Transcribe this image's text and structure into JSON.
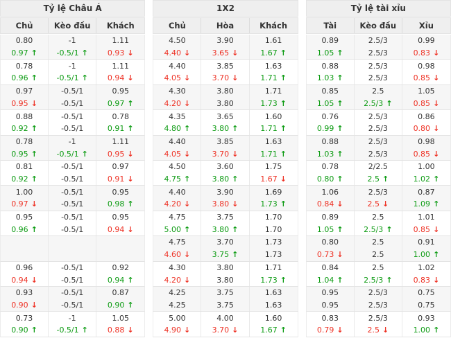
{
  "icons": {
    "up": "↑",
    "down": "↓"
  },
  "colors": {
    "up_green": "#0c9b12",
    "down_red": "#ee3124",
    "header_bg": "#efefef",
    "alt_row_bg": "#f6f6f6"
  },
  "sections": [
    {
      "title": "Tỷ lệ Châu Á",
      "columns": [
        "Chủ",
        "Kèo đầu",
        "Khách"
      ],
      "rows": [
        {
          "main": [
            [
              "0.80",
              ""
            ],
            [
              "-1",
              ""
            ],
            [
              "1.11",
              ""
            ]
          ],
          "change": [
            [
              "0.97",
              "up"
            ],
            [
              "-0.5/1",
              "up"
            ],
            [
              "0.93",
              "down"
            ]
          ]
        },
        {
          "main": [
            [
              "0.78",
              ""
            ],
            [
              "-1",
              ""
            ],
            [
              "1.11",
              ""
            ]
          ],
          "change": [
            [
              "0.96",
              "up"
            ],
            [
              "-0.5/1",
              "up"
            ],
            [
              "0.94",
              "down"
            ]
          ]
        },
        {
          "main": [
            [
              "0.97",
              ""
            ],
            [
              "-0.5/1",
              ""
            ],
            [
              "0.95",
              ""
            ]
          ],
          "change": [
            [
              "0.95",
              "down"
            ],
            [
              "-0.5/1",
              ""
            ],
            [
              "0.97",
              "up"
            ]
          ]
        },
        {
          "main": [
            [
              "0.88",
              ""
            ],
            [
              "-0.5/1",
              ""
            ],
            [
              "0.78",
              ""
            ]
          ],
          "change": [
            [
              "0.92",
              "up"
            ],
            [
              "-0.5/1",
              ""
            ],
            [
              "0.91",
              "up"
            ]
          ]
        },
        {
          "main": [
            [
              "0.78",
              ""
            ],
            [
              "-1",
              ""
            ],
            [
              "1.11",
              ""
            ]
          ],
          "change": [
            [
              "0.95",
              "up"
            ],
            [
              "-0.5/1",
              "up"
            ],
            [
              "0.95",
              "down"
            ]
          ]
        },
        {
          "main": [
            [
              "0.81",
              ""
            ],
            [
              "-0.5/1",
              ""
            ],
            [
              "0.97",
              ""
            ]
          ],
          "change": [
            [
              "0.92",
              "up"
            ],
            [
              "-0.5/1",
              ""
            ],
            [
              "0.91",
              "down"
            ]
          ]
        },
        {
          "main": [
            [
              "1.00",
              ""
            ],
            [
              "-0.5/1",
              ""
            ],
            [
              "0.95",
              ""
            ]
          ],
          "change": [
            [
              "0.97",
              "down"
            ],
            [
              "-0.5/1",
              ""
            ],
            [
              "0.98",
              "up"
            ]
          ]
        },
        {
          "main": [
            [
              "0.95",
              ""
            ],
            [
              "-0.5/1",
              ""
            ],
            [
              "0.95",
              ""
            ]
          ],
          "change": [
            [
              "0.96",
              "up"
            ],
            [
              "-0.5/1",
              ""
            ],
            [
              "0.94",
              "down"
            ]
          ]
        },
        {
          "main": [
            [
              "",
              ""
            ],
            [
              "",
              ""
            ],
            [
              "",
              ""
            ]
          ],
          "change": [
            [
              "",
              ""
            ],
            [
              "",
              ""
            ],
            [
              "",
              ""
            ]
          ]
        },
        {
          "main": [
            [
              "0.96",
              ""
            ],
            [
              "-0.5/1",
              ""
            ],
            [
              "0.92",
              ""
            ]
          ],
          "change": [
            [
              "0.94",
              "down"
            ],
            [
              "-0.5/1",
              ""
            ],
            [
              "0.94",
              "up"
            ]
          ]
        },
        {
          "main": [
            [
              "0.93",
              ""
            ],
            [
              "-0.5/1",
              ""
            ],
            [
              "0.87",
              ""
            ]
          ],
          "change": [
            [
              "0.90",
              "down"
            ],
            [
              "-0.5/1",
              ""
            ],
            [
              "0.90",
              "up"
            ]
          ]
        },
        {
          "main": [
            [
              "0.73",
              ""
            ],
            [
              "-1",
              ""
            ],
            [
              "1.05",
              ""
            ]
          ],
          "change": [
            [
              "0.90",
              "up"
            ],
            [
              "-0.5/1",
              "up"
            ],
            [
              "0.88",
              "down"
            ]
          ]
        }
      ]
    },
    {
      "title": "1X2",
      "columns": [
        "Chủ",
        "Hòa",
        "Khách"
      ],
      "rows": [
        {
          "main": [
            [
              "4.50",
              ""
            ],
            [
              "3.90",
              ""
            ],
            [
              "1.61",
              ""
            ]
          ],
          "change": [
            [
              "4.40",
              "down"
            ],
            [
              "3.65",
              "down"
            ],
            [
              "1.67",
              "up"
            ]
          ]
        },
        {
          "main": [
            [
              "4.40",
              ""
            ],
            [
              "3.85",
              ""
            ],
            [
              "1.63",
              ""
            ]
          ],
          "change": [
            [
              "4.05",
              "down"
            ],
            [
              "3.70",
              "down"
            ],
            [
              "1.71",
              "up"
            ]
          ]
        },
        {
          "main": [
            [
              "4.30",
              ""
            ],
            [
              "3.80",
              ""
            ],
            [
              "1.71",
              ""
            ]
          ],
          "change": [
            [
              "4.20",
              "down"
            ],
            [
              "3.80",
              ""
            ],
            [
              "1.73",
              "up"
            ]
          ]
        },
        {
          "main": [
            [
              "4.35",
              ""
            ],
            [
              "3.65",
              ""
            ],
            [
              "1.60",
              ""
            ]
          ],
          "change": [
            [
              "4.80",
              "up"
            ],
            [
              "3.80",
              "up"
            ],
            [
              "1.71",
              "up"
            ]
          ]
        },
        {
          "main": [
            [
              "4.40",
              ""
            ],
            [
              "3.85",
              ""
            ],
            [
              "1.63",
              ""
            ]
          ],
          "change": [
            [
              "4.05",
              "down"
            ],
            [
              "3.70",
              "down"
            ],
            [
              "1.71",
              "up"
            ]
          ]
        },
        {
          "main": [
            [
              "4.50",
              ""
            ],
            [
              "3.60",
              ""
            ],
            [
              "1.75",
              ""
            ]
          ],
          "change": [
            [
              "4.75",
              "up"
            ],
            [
              "3.80",
              "up"
            ],
            [
              "1.67",
              "down"
            ]
          ]
        },
        {
          "main": [
            [
              "4.40",
              ""
            ],
            [
              "3.90",
              ""
            ],
            [
              "1.69",
              ""
            ]
          ],
          "change": [
            [
              "4.20",
              "down"
            ],
            [
              "3.80",
              "down"
            ],
            [
              "1.73",
              "up"
            ]
          ]
        },
        {
          "main": [
            [
              "4.75",
              ""
            ],
            [
              "3.75",
              ""
            ],
            [
              "1.70",
              ""
            ]
          ],
          "change": [
            [
              "5.00",
              "up"
            ],
            [
              "3.80",
              "up"
            ],
            [
              "1.70",
              ""
            ]
          ]
        },
        {
          "main": [
            [
              "4.75",
              ""
            ],
            [
              "3.70",
              ""
            ],
            [
              "1.73",
              ""
            ]
          ],
          "change": [
            [
              "4.60",
              "down"
            ],
            [
              "3.75",
              "up"
            ],
            [
              "1.73",
              ""
            ]
          ]
        },
        {
          "main": [
            [
              "4.30",
              ""
            ],
            [
              "3.80",
              ""
            ],
            [
              "1.71",
              ""
            ]
          ],
          "change": [
            [
              "4.20",
              "down"
            ],
            [
              "3.80",
              ""
            ],
            [
              "1.73",
              "up"
            ]
          ]
        },
        {
          "main": [
            [
              "4.25",
              ""
            ],
            [
              "3.75",
              ""
            ],
            [
              "1.63",
              ""
            ]
          ],
          "change": [
            [
              "4.25",
              ""
            ],
            [
              "3.75",
              ""
            ],
            [
              "1.63",
              ""
            ]
          ]
        },
        {
          "main": [
            [
              "5.00",
              ""
            ],
            [
              "4.00",
              ""
            ],
            [
              "1.60",
              ""
            ]
          ],
          "change": [
            [
              "4.90",
              "down"
            ],
            [
              "3.70",
              "down"
            ],
            [
              "1.67",
              "up"
            ]
          ]
        }
      ]
    },
    {
      "title": "Tỷ lệ tài xỉu",
      "columns": [
        "Tài",
        "Kèo đầu",
        "Xỉu"
      ],
      "rows": [
        {
          "main": [
            [
              "0.89",
              ""
            ],
            [
              "2.5/3",
              ""
            ],
            [
              "0.99",
              ""
            ]
          ],
          "change": [
            [
              "1.05",
              "up"
            ],
            [
              "2.5/3",
              ""
            ],
            [
              "0.83",
              "down"
            ]
          ]
        },
        {
          "main": [
            [
              "0.88",
              ""
            ],
            [
              "2.5/3",
              ""
            ],
            [
              "0.98",
              ""
            ]
          ],
          "change": [
            [
              "1.03",
              "up"
            ],
            [
              "2.5/3",
              ""
            ],
            [
              "0.85",
              "down"
            ]
          ]
        },
        {
          "main": [
            [
              "0.85",
              ""
            ],
            [
              "2.5",
              ""
            ],
            [
              "1.05",
              ""
            ]
          ],
          "change": [
            [
              "1.05",
              "up"
            ],
            [
              "2.5/3",
              "up"
            ],
            [
              "0.85",
              "down"
            ]
          ]
        },
        {
          "main": [
            [
              "0.76",
              ""
            ],
            [
              "2.5/3",
              ""
            ],
            [
              "0.86",
              ""
            ]
          ],
          "change": [
            [
              "0.99",
              "up"
            ],
            [
              "2.5/3",
              ""
            ],
            [
              "0.80",
              "down"
            ]
          ]
        },
        {
          "main": [
            [
              "0.88",
              ""
            ],
            [
              "2.5/3",
              ""
            ],
            [
              "0.98",
              ""
            ]
          ],
          "change": [
            [
              "1.03",
              "up"
            ],
            [
              "2.5/3",
              ""
            ],
            [
              "0.85",
              "down"
            ]
          ]
        },
        {
          "main": [
            [
              "0.78",
              ""
            ],
            [
              "2/2.5",
              ""
            ],
            [
              "1.00",
              ""
            ]
          ],
          "change": [
            [
              "0.80",
              "up"
            ],
            [
              "2.5",
              "up"
            ],
            [
              "1.02",
              "up"
            ]
          ]
        },
        {
          "main": [
            [
              "1.06",
              ""
            ],
            [
              "2.5/3",
              ""
            ],
            [
              "0.87",
              ""
            ]
          ],
          "change": [
            [
              "0.84",
              "down"
            ],
            [
              "2.5",
              "down"
            ],
            [
              "1.09",
              "up"
            ]
          ]
        },
        {
          "main": [
            [
              "0.89",
              ""
            ],
            [
              "2.5",
              ""
            ],
            [
              "1.01",
              ""
            ]
          ],
          "change": [
            [
              "1.05",
              "up"
            ],
            [
              "2.5/3",
              "up"
            ],
            [
              "0.85",
              "down"
            ]
          ]
        },
        {
          "main": [
            [
              "0.80",
              ""
            ],
            [
              "2.5",
              ""
            ],
            [
              "0.91",
              ""
            ]
          ],
          "change": [
            [
              "0.73",
              "down"
            ],
            [
              "2.5",
              ""
            ],
            [
              "1.00",
              "up"
            ]
          ]
        },
        {
          "main": [
            [
              "0.84",
              ""
            ],
            [
              "2.5",
              ""
            ],
            [
              "1.02",
              ""
            ]
          ],
          "change": [
            [
              "1.04",
              "up"
            ],
            [
              "2.5/3",
              "up"
            ],
            [
              "0.83",
              "down"
            ]
          ]
        },
        {
          "main": [
            [
              "0.95",
              ""
            ],
            [
              "2.5/3",
              ""
            ],
            [
              "0.75",
              ""
            ]
          ],
          "change": [
            [
              "0.95",
              ""
            ],
            [
              "2.5/3",
              ""
            ],
            [
              "0.75",
              ""
            ]
          ]
        },
        {
          "main": [
            [
              "0.83",
              ""
            ],
            [
              "2.5/3",
              ""
            ],
            [
              "0.93",
              ""
            ]
          ],
          "change": [
            [
              "0.79",
              "down"
            ],
            [
              "2.5",
              "down"
            ],
            [
              "1.00",
              "up"
            ]
          ]
        }
      ]
    }
  ]
}
